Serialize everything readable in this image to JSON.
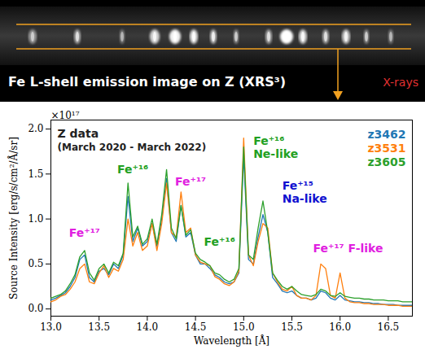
{
  "header": {
    "title": "Fe L-shell emission image on Z (XRS³)",
    "label": "X-rays"
  },
  "chart_data": {
    "type": "line",
    "title": "Z data",
    "subtitle": "(March 2020 - March 2022)",
    "x_label": "Wavelength [Å]",
    "y_label": "Source Intensity [erg/s/cm²/Å/sr]",
    "y_scale_label": "×10¹⁷",
    "legend": "top-right",
    "grid": false,
    "xlim": [
      13.0,
      16.75
    ],
    "ylim": [
      -0.08,
      2.1
    ],
    "xticks": [
      {
        "value": 13,
        "label": "13.0"
      },
      13.5,
      {
        "value": 14,
        "label": "14.0"
      },
      14.5,
      {
        "value": 15,
        "label": "15.0"
      },
      15.5,
      {
        "value": 16,
        "label": "16.0"
      },
      16.5
    ],
    "yticks": [
      {
        "value": 0,
        "label": "0.0"
      },
      0.5,
      {
        "value": 1,
        "label": "1.0"
      },
      1.5,
      {
        "value": 2,
        "label": "2.0"
      }
    ],
    "x": [
      13.0,
      13.05,
      13.1,
      13.15,
      13.2,
      13.25,
      13.3,
      13.35,
      13.4,
      13.45,
      13.5,
      13.55,
      13.6,
      13.65,
      13.7,
      13.75,
      13.8,
      13.85,
      13.9,
      13.95,
      14.0,
      14.05,
      14.1,
      14.15,
      14.2,
      14.25,
      14.3,
      14.35,
      14.4,
      14.45,
      14.5,
      14.55,
      14.6,
      14.65,
      14.7,
      14.75,
      14.8,
      14.85,
      14.9,
      14.95,
      15.0,
      15.05,
      15.1,
      15.15,
      15.2,
      15.25,
      15.3,
      15.35,
      15.4,
      15.45,
      15.5,
      15.55,
      15.6,
      15.65,
      15.7,
      15.75,
      15.8,
      15.85,
      15.9,
      15.95,
      16.0,
      16.05,
      16.1,
      16.15,
      16.2,
      16.25,
      16.3,
      16.35,
      16.4,
      16.45,
      16.5,
      16.55,
      16.6,
      16.65,
      16.7,
      16.75
    ],
    "series": [
      {
        "name": "z3462",
        "color": "#1f77b4",
        "values": [
          0.1,
          0.12,
          0.15,
          0.18,
          0.25,
          0.35,
          0.55,
          0.6,
          0.35,
          0.3,
          0.42,
          0.45,
          0.38,
          0.5,
          0.45,
          0.6,
          1.25,
          0.75,
          0.9,
          0.7,
          0.75,
          0.95,
          0.7,
          1.0,
          1.45,
          0.85,
          0.75,
          1.15,
          0.8,
          0.85,
          0.6,
          0.5,
          0.5,
          0.45,
          0.38,
          0.35,
          0.3,
          0.28,
          0.3,
          0.4,
          1.7,
          0.55,
          0.5,
          0.8,
          1.05,
          0.85,
          0.35,
          0.28,
          0.2,
          0.18,
          0.2,
          0.15,
          0.12,
          0.12,
          0.1,
          0.12,
          0.2,
          0.18,
          0.12,
          0.1,
          0.15,
          0.1,
          0.09,
          0.08,
          0.08,
          0.07,
          0.07,
          0.06,
          0.06,
          0.05,
          0.05,
          0.05,
          0.04,
          0.04,
          0.04,
          0.04
        ]
      },
      {
        "name": "z3531",
        "color": "#ff7f0e",
        "values": [
          0.08,
          0.1,
          0.14,
          0.16,
          0.22,
          0.3,
          0.45,
          0.5,
          0.3,
          0.28,
          0.4,
          0.48,
          0.35,
          0.45,
          0.42,
          0.55,
          1.0,
          0.7,
          0.85,
          0.65,
          0.7,
          0.95,
          0.65,
          0.95,
          1.4,
          0.85,
          0.8,
          1.3,
          0.85,
          0.9,
          0.6,
          0.52,
          0.5,
          0.48,
          0.36,
          0.33,
          0.28,
          0.26,
          0.3,
          0.42,
          1.9,
          0.6,
          0.48,
          0.75,
          0.95,
          0.9,
          0.4,
          0.3,
          0.22,
          0.2,
          0.25,
          0.15,
          0.12,
          0.12,
          0.1,
          0.15,
          0.5,
          0.45,
          0.15,
          0.12,
          0.4,
          0.12,
          0.08,
          0.07,
          0.07,
          0.06,
          0.06,
          0.05,
          0.05,
          0.05,
          0.04,
          0.04,
          0.04,
          0.03,
          0.03,
          0.03
        ]
      },
      {
        "name": "z3605",
        "color": "#2ca02c",
        "values": [
          0.12,
          0.14,
          0.16,
          0.2,
          0.28,
          0.38,
          0.58,
          0.65,
          0.4,
          0.32,
          0.45,
          0.5,
          0.4,
          0.52,
          0.48,
          0.62,
          1.4,
          0.8,
          0.92,
          0.72,
          0.78,
          1.0,
          0.72,
          1.05,
          1.55,
          0.9,
          0.78,
          1.15,
          0.82,
          0.88,
          0.62,
          0.55,
          0.52,
          0.48,
          0.4,
          0.38,
          0.33,
          0.3,
          0.33,
          0.45,
          1.8,
          0.6,
          0.55,
          0.9,
          1.2,
          0.85,
          0.4,
          0.32,
          0.25,
          0.22,
          0.25,
          0.2,
          0.16,
          0.15,
          0.14,
          0.16,
          0.22,
          0.2,
          0.15,
          0.14,
          0.18,
          0.14,
          0.13,
          0.12,
          0.12,
          0.11,
          0.11,
          0.1,
          0.1,
          0.1,
          0.09,
          0.09,
          0.09,
          0.08,
          0.08,
          0.08
        ]
      }
    ],
    "annotations": [
      {
        "lines": [
          "Fe⁺¹⁷"
        ],
        "color": "#e020e0"
      },
      {
        "lines": [
          "Fe⁺¹⁶"
        ],
        "color": "#22a022"
      },
      {
        "lines": [
          "Fe⁺¹⁷"
        ],
        "color": "#e020e0"
      },
      {
        "lines": [
          "Fe⁺¹⁶"
        ],
        "color": "#22a022"
      },
      {
        "lines": [
          "Fe⁺¹⁶",
          "Ne-like"
        ],
        "color": "#22a022"
      },
      {
        "lines": [
          "Fe⁺¹⁵",
          "Na-like"
        ],
        "color": "#1010d0"
      },
      {
        "lines": [
          "Fe⁺¹⁷ F-like"
        ],
        "color": "#e020e0"
      }
    ]
  }
}
